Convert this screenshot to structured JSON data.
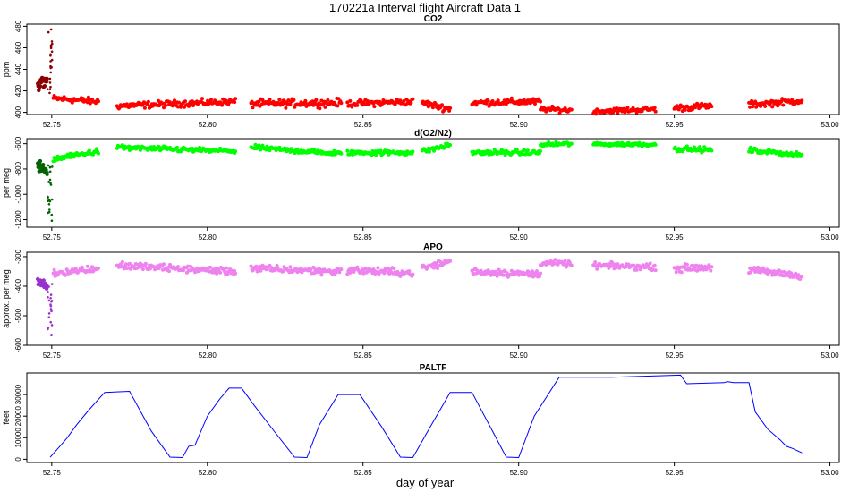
{
  "title": "170221a   Interval flight Aircraft Data 1",
  "xlabel": "day of year",
  "x_ticks": [
    "52.75",
    "52.80",
    "52.85",
    "52.90",
    "52.95",
    "53.00"
  ],
  "x_range": [
    52.742,
    53.003
  ],
  "chart_data": [
    {
      "type": "scatter",
      "title": "CO2",
      "ylabel": "ppm",
      "ylim": [
        398,
        482
      ],
      "y_ticks": [
        400,
        420,
        440,
        460,
        480
      ],
      "x_ticks": [
        "52.75",
        "52.80",
        "52.85",
        "52.90",
        "52.95",
        "53.00"
      ],
      "main_color": "#ff0000",
      "dark_color": "#8b0000",
      "segments": [
        {
          "x0": 52.7505,
          "x1": 52.765,
          "y0": 413,
          "y1": 410,
          "noise": 1.5
        },
        {
          "x0": 52.771,
          "x1": 52.809,
          "y0": 406,
          "y1": 410,
          "noise": 1.5
        },
        {
          "x0": 52.814,
          "x1": 52.843,
          "y0": 408,
          "y1": 409,
          "noise": 1.8
        },
        {
          "x0": 52.845,
          "x1": 52.866,
          "y0": 408,
          "y1": 410,
          "noise": 1.5
        },
        {
          "x0": 52.869,
          "x1": 52.878,
          "y0": 409,
          "y1": 403,
          "noise": 1.5
        },
        {
          "x0": 52.885,
          "x1": 52.907,
          "y0": 409,
          "y1": 410,
          "noise": 1.5
        },
        {
          "x0": 52.907,
          "x1": 52.917,
          "y0": 403,
          "y1": 402,
          "noise": 1.2
        },
        {
          "x0": 52.924,
          "x1": 52.944,
          "y0": 401,
          "y1": 403,
          "noise": 1.2
        },
        {
          "x0": 52.95,
          "x1": 52.962,
          "y0": 404,
          "y1": 406,
          "noise": 1.5
        },
        {
          "x0": 52.974,
          "x1": 52.991,
          "y0": 407,
          "y1": 411,
          "noise": 1.5
        }
      ],
      "dark_segments": [
        {
          "x0": 52.7455,
          "x1": 52.7485,
          "y0": 423,
          "y1": 432,
          "noise": 3
        }
      ],
      "spikes": [
        {
          "x": 52.7494,
          "ylo": 418,
          "yhi": 478
        }
      ]
    },
    {
      "type": "scatter",
      "title": "d(O2/N2)",
      "ylabel": "per meg",
      "ylim": [
        -1260,
        -560
      ],
      "y_ticks": [
        -1200,
        -1000,
        -800,
        -600
      ],
      "x_ticks": [
        "52.75",
        "52.80",
        "52.85",
        "52.90",
        "52.95",
        "53.00"
      ],
      "main_color": "#00ff00",
      "dark_color": "#006400",
      "segments": [
        {
          "x0": 52.7505,
          "x1": 52.765,
          "y0": -720,
          "y1": -660,
          "noise": 10
        },
        {
          "x0": 52.771,
          "x1": 52.809,
          "y0": -630,
          "y1": -660,
          "noise": 10
        },
        {
          "x0": 52.814,
          "x1": 52.843,
          "y0": -630,
          "y1": -680,
          "noise": 10
        },
        {
          "x0": 52.845,
          "x1": 52.866,
          "y0": -670,
          "y1": -670,
          "noise": 10
        },
        {
          "x0": 52.869,
          "x1": 52.878,
          "y0": -660,
          "y1": -610,
          "noise": 10
        },
        {
          "x0": 52.885,
          "x1": 52.907,
          "y0": -670,
          "y1": -670,
          "noise": 10
        },
        {
          "x0": 52.907,
          "x1": 52.917,
          "y0": -610,
          "y1": -600,
          "noise": 8
        },
        {
          "x0": 52.924,
          "x1": 52.944,
          "y0": -605,
          "y1": -605,
          "noise": 8
        },
        {
          "x0": 52.95,
          "x1": 52.962,
          "y0": -640,
          "y1": -650,
          "noise": 10
        },
        {
          "x0": 52.974,
          "x1": 52.991,
          "y0": -650,
          "y1": -690,
          "noise": 10
        }
      ],
      "dark_segments": [
        {
          "x0": 52.7455,
          "x1": 52.7485,
          "y0": -780,
          "y1": -820,
          "noise": 20
        }
      ],
      "spikes": [
        {
          "x": 52.7494,
          "ylo": -1230,
          "yhi": -760
        }
      ]
    },
    {
      "type": "scatter",
      "title": "APO",
      "ylabel": "approx. per meg",
      "ylim": [
        -600,
        -285
      ],
      "y_ticks": [
        -600,
        -500,
        -400,
        -300
      ],
      "x_ticks": [
        "52.75",
        "52.80",
        "52.85",
        "52.90",
        "52.95",
        "53.00"
      ],
      "main_color": "#ee82ee",
      "dark_color": "#9932cc",
      "segments": [
        {
          "x0": 52.7505,
          "x1": 52.765,
          "y0": -355,
          "y1": -340,
          "noise": 6
        },
        {
          "x0": 52.771,
          "x1": 52.809,
          "y0": -330,
          "y1": -350,
          "noise": 6
        },
        {
          "x0": 52.814,
          "x1": 52.843,
          "y0": -340,
          "y1": -350,
          "noise": 6
        },
        {
          "x0": 52.845,
          "x1": 52.866,
          "y0": -345,
          "y1": -355,
          "noise": 6
        },
        {
          "x0": 52.869,
          "x1": 52.878,
          "y0": -340,
          "y1": -315,
          "noise": 6
        },
        {
          "x0": 52.885,
          "x1": 52.907,
          "y0": -350,
          "y1": -360,
          "noise": 6
        },
        {
          "x0": 52.907,
          "x1": 52.917,
          "y0": -320,
          "y1": -325,
          "noise": 5
        },
        {
          "x0": 52.924,
          "x1": 52.944,
          "y0": -330,
          "y1": -335,
          "noise": 5
        },
        {
          "x0": 52.95,
          "x1": 52.962,
          "y0": -340,
          "y1": -335,
          "noise": 6
        },
        {
          "x0": 52.974,
          "x1": 52.991,
          "y0": -345,
          "y1": -365,
          "noise": 6
        }
      ],
      "dark_segments": [
        {
          "x0": 52.7455,
          "x1": 52.7485,
          "y0": -380,
          "y1": -405,
          "noise": 7
        }
      ],
      "spikes": [
        {
          "x": 52.7494,
          "ylo": -585,
          "yhi": -375
        }
      ]
    },
    {
      "type": "line",
      "title": "PALTF",
      "ylabel": "feet",
      "ylim": [
        -1500,
        40000
      ],
      "y_ticks": [
        0,
        10000,
        20000,
        30000
      ],
      "x_ticks": [
        "52.75",
        "52.80",
        "52.85",
        "52.90",
        "52.95",
        "53.00"
      ],
      "line_color": "#0000ff",
      "x": [
        52.7495,
        52.752,
        52.755,
        52.758,
        52.762,
        52.767,
        52.775,
        52.782,
        52.788,
        52.792,
        52.794,
        52.796,
        52.8,
        52.804,
        52.807,
        52.811,
        52.815,
        52.822,
        52.828,
        52.832,
        52.836,
        52.842,
        52.849,
        52.856,
        52.862,
        52.866,
        52.872,
        52.878,
        52.885,
        52.892,
        52.896,
        52.9,
        52.905,
        52.909,
        52.913,
        52.93,
        52.952,
        52.954,
        52.966,
        52.967,
        52.969,
        52.974,
        52.976,
        52.98,
        52.984,
        52.986,
        52.988,
        52.991
      ],
      "y": [
        1000,
        5000,
        10000,
        16000,
        23000,
        31000,
        31500,
        13000,
        1000,
        800,
        6000,
        6500,
        20000,
        28000,
        33000,
        33000,
        25000,
        12000,
        1000,
        800,
        16000,
        30000,
        30000,
        15000,
        1000,
        800,
        16000,
        31000,
        31000,
        12000,
        1000,
        800,
        20000,
        29000,
        38000,
        38000,
        39000,
        35000,
        35500,
        36000,
        35500,
        35500,
        22000,
        14000,
        9000,
        6000,
        5000,
        3000
      ]
    }
  ]
}
